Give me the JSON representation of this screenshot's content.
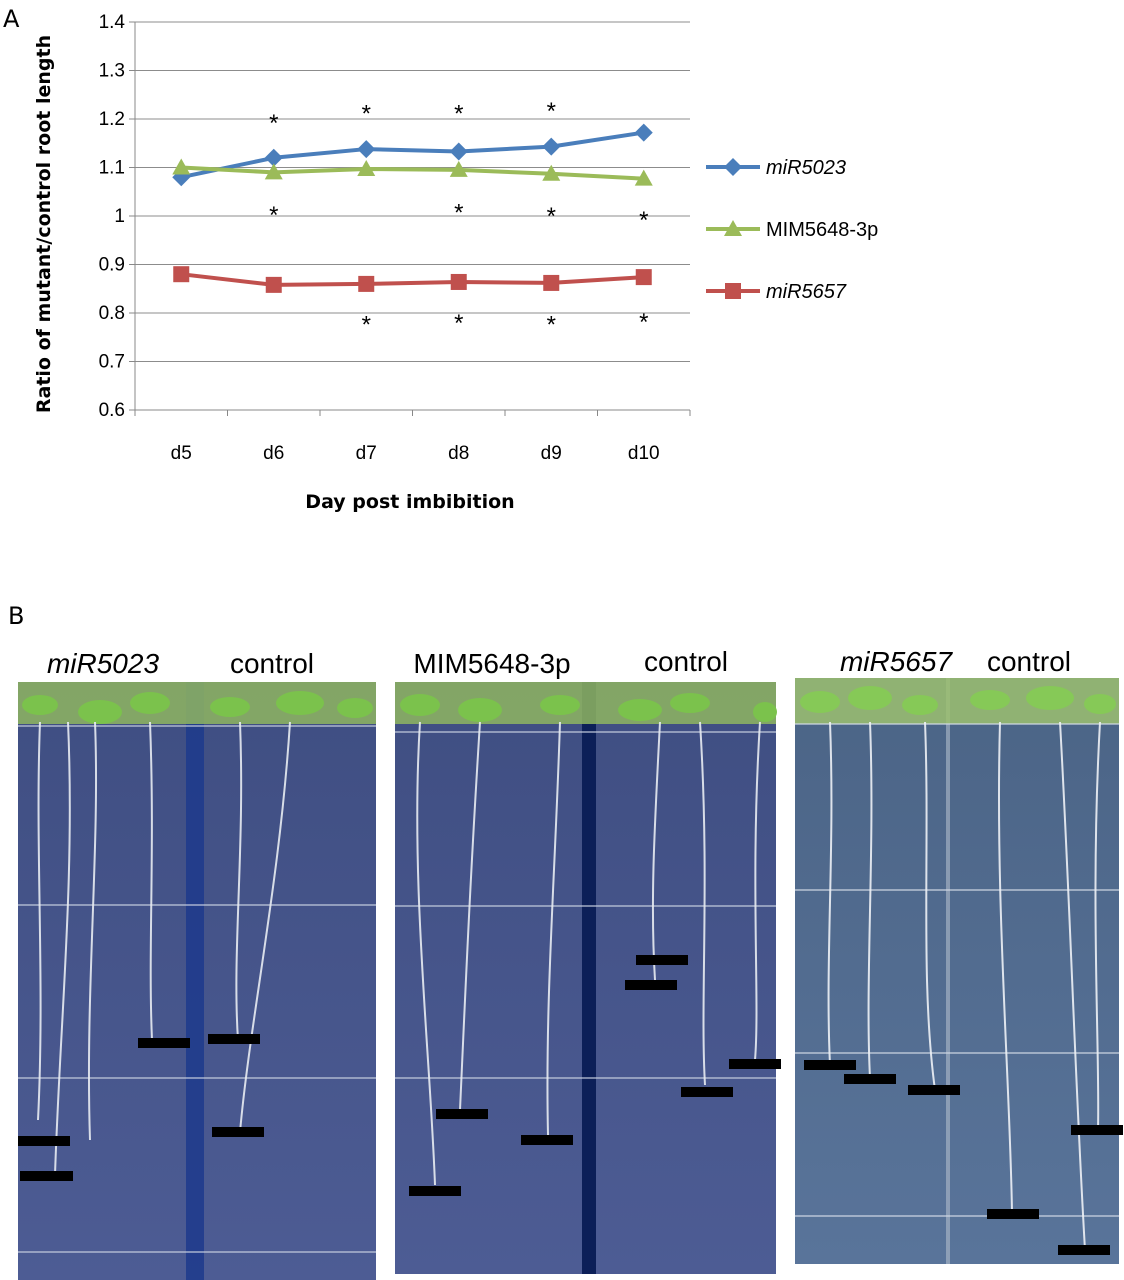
{
  "panel_a_letter": "A",
  "panel_b_letter": "B",
  "chart_data": {
    "type": "line",
    "title": "",
    "xlabel": "Day post imbibition",
    "ylabel": "Ratio of mutant/control  root length",
    "categories": [
      "d5",
      "d6",
      "d7",
      "d8",
      "d9",
      "d10"
    ],
    "ylim": [
      0.6,
      1.4
    ],
    "yticks": [
      "0.6",
      "0.7",
      "0.8",
      "0.9",
      "1",
      "1.1",
      "1.2",
      "1.3",
      "1.4"
    ],
    "grid": true,
    "legend": "right",
    "series": [
      {
        "name": "miR5023",
        "italic": true,
        "color": "#4a7ebb",
        "marker": "diamond",
        "values": [
          1.08,
          1.12,
          1.138,
          1.133,
          1.143,
          1.172
        ]
      },
      {
        "name": "MIM5648-3p",
        "italic": false,
        "color": "#9bbb59",
        "marker": "triangle",
        "values": [
          1.1,
          1.09,
          1.097,
          1.095,
          1.087,
          1.077
        ]
      },
      {
        "name": "miR5657",
        "italic": true,
        "color": "#c0504d",
        "marker": "square",
        "values": [
          0.88,
          0.858,
          0.86,
          0.864,
          0.862,
          0.874
        ]
      }
    ],
    "annotations": [
      {
        "text": "*",
        "x": "d6",
        "y": 1.2
      },
      {
        "text": "*",
        "x": "d7",
        "y": 1.22
      },
      {
        "text": "*",
        "x": "d8",
        "y": 1.22
      },
      {
        "text": "*",
        "x": "d9",
        "y": 1.225
      },
      {
        "text": "*",
        "x": "d6",
        "y": 1.01
      },
      {
        "text": "*",
        "x": "d8",
        "y": 1.015
      },
      {
        "text": "*",
        "x": "d9",
        "y": 1.008
      },
      {
        "text": "*",
        "x": "d10",
        "y": 1.0
      },
      {
        "text": "*",
        "x": "d7",
        "y": 0.785
      },
      {
        "text": "*",
        "x": "d8",
        "y": 0.788
      },
      {
        "text": "*",
        "x": "d9",
        "y": 0.785
      },
      {
        "text": "*",
        "x": "d10",
        "y": 0.79
      }
    ]
  },
  "photos": [
    {
      "labels": [
        {
          "text": "miR5023",
          "italic": true
        },
        {
          "text": "control",
          "italic": false
        }
      ]
    },
    {
      "labels": [
        {
          "text": "MIM5648-3p",
          "italic": false
        },
        {
          "text": "control",
          "italic": false
        }
      ]
    },
    {
      "labels": [
        {
          "text": "miR5657",
          "italic": true
        },
        {
          "text": "control",
          "italic": false
        }
      ]
    }
  ]
}
